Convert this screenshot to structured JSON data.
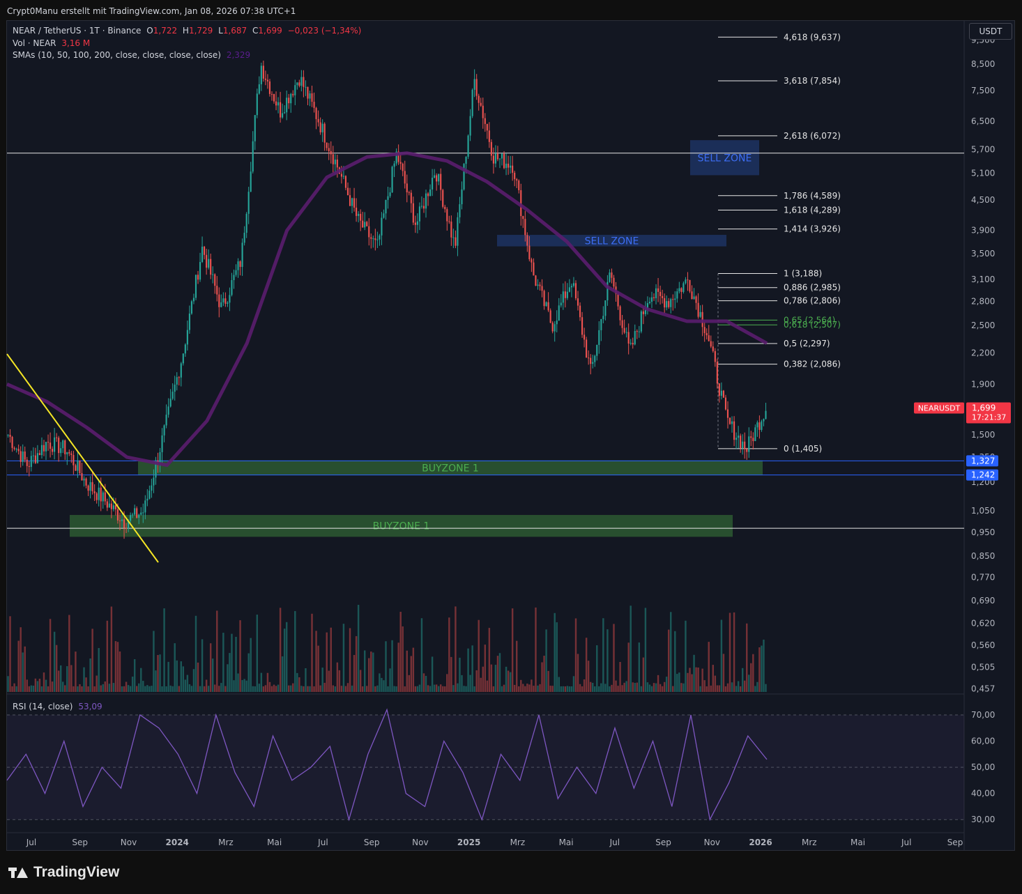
{
  "header": {
    "caption": "Crypt0Manu erstellt mit TradingView.com, Jan 08, 2026 07:38 UTC+1"
  },
  "legend": {
    "symbol": "NEAR / TetherUS · 1T · Binance",
    "o_label": "O",
    "o_value": "1,722",
    "h_label": "H",
    "h_value": "1,729",
    "l_label": "L",
    "l_value": "1,687",
    "c_label": "C",
    "c_value": "1,699",
    "change": "−0,023 (−1,34%)",
    "vol_label": "Vol · NEAR",
    "vol_value": "3,16 M",
    "sma_label": "SMAs (10, 50, 100, 200, close, close, close, close)",
    "sma_value": "2,329",
    "rsi_label": "RSI (14, close)",
    "rsi_value": "53,09"
  },
  "currency_button": "USDT",
  "price_tag": {
    "symbol": "NEARUSDT",
    "price": "1,699",
    "countdown": "17:21:37"
  },
  "level_tags": [
    "1,327",
    "1,242"
  ],
  "brand": "TradingView",
  "colors": {
    "up": "#26a69a",
    "down": "#ef5350",
    "sma": "#5b1d6e",
    "rsi": "#7e57c2",
    "trendline": "#f5e625",
    "buyzone": "#2e5e33",
    "sellzone": "#1e3467",
    "tag_red": "#f23645",
    "tag_blue": "#2962ff"
  },
  "chart_data": {
    "type": "candlestick",
    "scale": "log",
    "x_ticks": [
      "Jul",
      "Sep",
      "Nov",
      "2024",
      "Mrz",
      "Mai",
      "Jul",
      "Sep",
      "Nov",
      "2025",
      "Mrz",
      "Mai",
      "Jul",
      "Sep",
      "Nov",
      "2026",
      "Mrz",
      "Mai",
      "Jul",
      "Sep"
    ],
    "y_ticks": [
      "9,500",
      "8,500",
      "7,500",
      "6,500",
      "5,700",
      "5,100",
      "4,500",
      "3,900",
      "3,500",
      "3,100",
      "2,800",
      "2,500",
      "2,200",
      "1,900",
      "1,500",
      "1,350",
      "1,200",
      "1,050",
      "0,950",
      "0,850",
      "0,770",
      "0,690",
      "0,620",
      "0,560",
      "0,505",
      "0,457"
    ],
    "y_tick_values": [
      9.5,
      8.5,
      7.5,
      6.5,
      5.7,
      5.1,
      4.5,
      3.9,
      3.5,
      3.1,
      2.8,
      2.5,
      2.2,
      1.9,
      1.5,
      1.35,
      1.2,
      1.05,
      0.95,
      0.85,
      0.77,
      0.69,
      0.62,
      0.56,
      0.505,
      0.457
    ],
    "price_path": [
      1.5,
      1.3,
      1.45,
      1.4,
      1.2,
      1.1,
      1.0,
      1.05,
      1.5,
      2.2,
      3.6,
      2.7,
      3.4,
      8.5,
      6.8,
      8.0,
      6.5,
      5.2,
      4.1,
      3.6,
      5.6,
      4.0,
      5.2,
      3.6,
      7.9,
      5.5,
      5.3,
      3.2,
      2.5,
      3.1,
      2.0,
      3.2,
      2.2,
      2.9,
      2.8,
      3.1,
      2.4,
      1.6,
      1.4,
      1.7
    ],
    "sma_path": [
      1.9,
      1.75,
      1.55,
      1.35,
      1.3,
      1.6,
      2.3,
      3.9,
      5.0,
      5.5,
      5.6,
      5.4,
      4.9,
      4.3,
      3.7,
      3.0,
      2.7,
      2.55,
      2.55,
      2.3
    ],
    "rsi_path": [
      45,
      55,
      40,
      60,
      35,
      50,
      42,
      70,
      65,
      55,
      40,
      70,
      48,
      35,
      62,
      45,
      50,
      58,
      30,
      55,
      72,
      40,
      35,
      60,
      48,
      30,
      55,
      45,
      70,
      38,
      50,
      40,
      65,
      42,
      60,
      35,
      70,
      30,
      44,
      62,
      53
    ],
    "rsi_ticks": [
      "70,00",
      "60,00",
      "50,00",
      "40,00",
      "30,00"
    ],
    "rsi_tick_values": [
      70,
      60,
      50,
      40,
      30
    ],
    "fib_levels": [
      {
        "label": "4,618 (9,637)",
        "value": 9.637
      },
      {
        "label": "3,618 (7,854)",
        "value": 7.854
      },
      {
        "label": "2,618 (6,072)",
        "value": 6.072
      },
      {
        "label": "1,786 (4,589)",
        "value": 4.589
      },
      {
        "label": "1,618 (4,289)",
        "value": 4.289
      },
      {
        "label": "1,414 (3,926)",
        "value": 3.926
      },
      {
        "label": "1 (3,188)",
        "value": 3.188
      },
      {
        "label": "0,886 (2,985)",
        "value": 2.985
      },
      {
        "label": "0,786 (2,806)",
        "value": 2.806
      },
      {
        "label": "0,65 (2,564)",
        "value": 2.564
      },
      {
        "label": "0,618 (2,507)",
        "value": 2.507
      },
      {
        "label": "0,5 (2,297)",
        "value": 2.297
      },
      {
        "label": "0,382 (2,086)",
        "value": 2.086
      },
      {
        "label": "0 (1,405)",
        "value": 1.405
      }
    ],
    "zones": [
      {
        "label": "SELL ZONE",
        "low": 5.05,
        "high": 5.95,
        "kind": "sell"
      },
      {
        "label": "SELL ZONE",
        "low": 3.62,
        "high": 3.82,
        "kind": "sell"
      },
      {
        "label": "BUYZONE 1",
        "low": 1.24,
        "high": 1.33,
        "kind": "buy"
      },
      {
        "label": "BUYZONE 1",
        "low": 0.93,
        "high": 1.03,
        "kind": "buy"
      }
    ],
    "horizontal_lines": [
      5.6,
      0.968
    ],
    "blue_lines": [
      1.327,
      1.242
    ]
  }
}
